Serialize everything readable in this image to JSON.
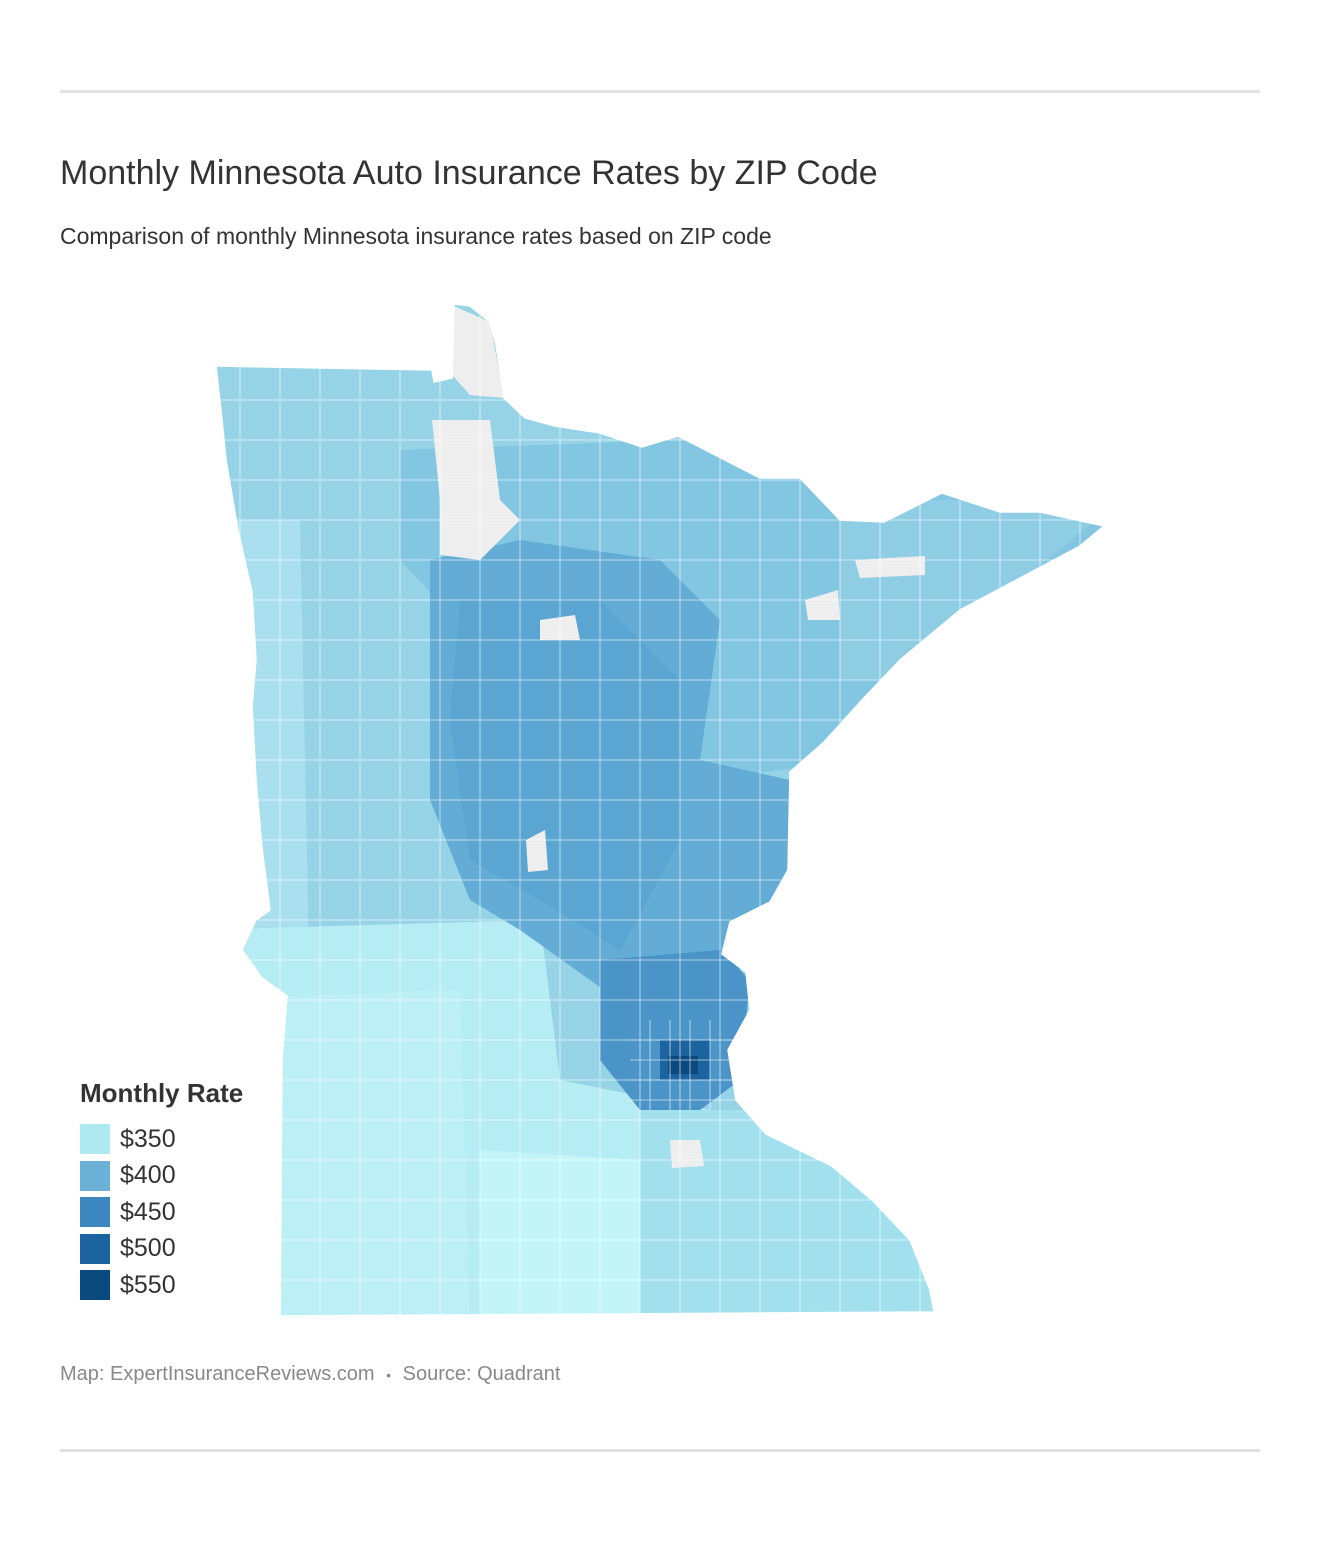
{
  "header": {
    "title": "Monthly Minnesota Auto Insurance Rates by ZIP Code",
    "subtitle": "Comparison of monthly Minnesota insurance rates based on ZIP code"
  },
  "legend": {
    "title": "Monthly Rate",
    "items": [
      {
        "label": "$350",
        "color": "#aee8f0"
      },
      {
        "label": "$400",
        "color": "#6bb0d6"
      },
      {
        "label": "$450",
        "color": "#3c87bf"
      },
      {
        "label": "$500",
        "color": "#1c64a0"
      },
      {
        "label": "$550",
        "color": "#0a4a7e"
      }
    ]
  },
  "map": {
    "region": "Minnesota",
    "no_data_color": "#eeeeee",
    "border_color": "#ffffff"
  },
  "footer": {
    "map_credit": "Map: ExpertInsuranceReviews.com",
    "separator": "•",
    "source": "Source: Quadrant"
  }
}
